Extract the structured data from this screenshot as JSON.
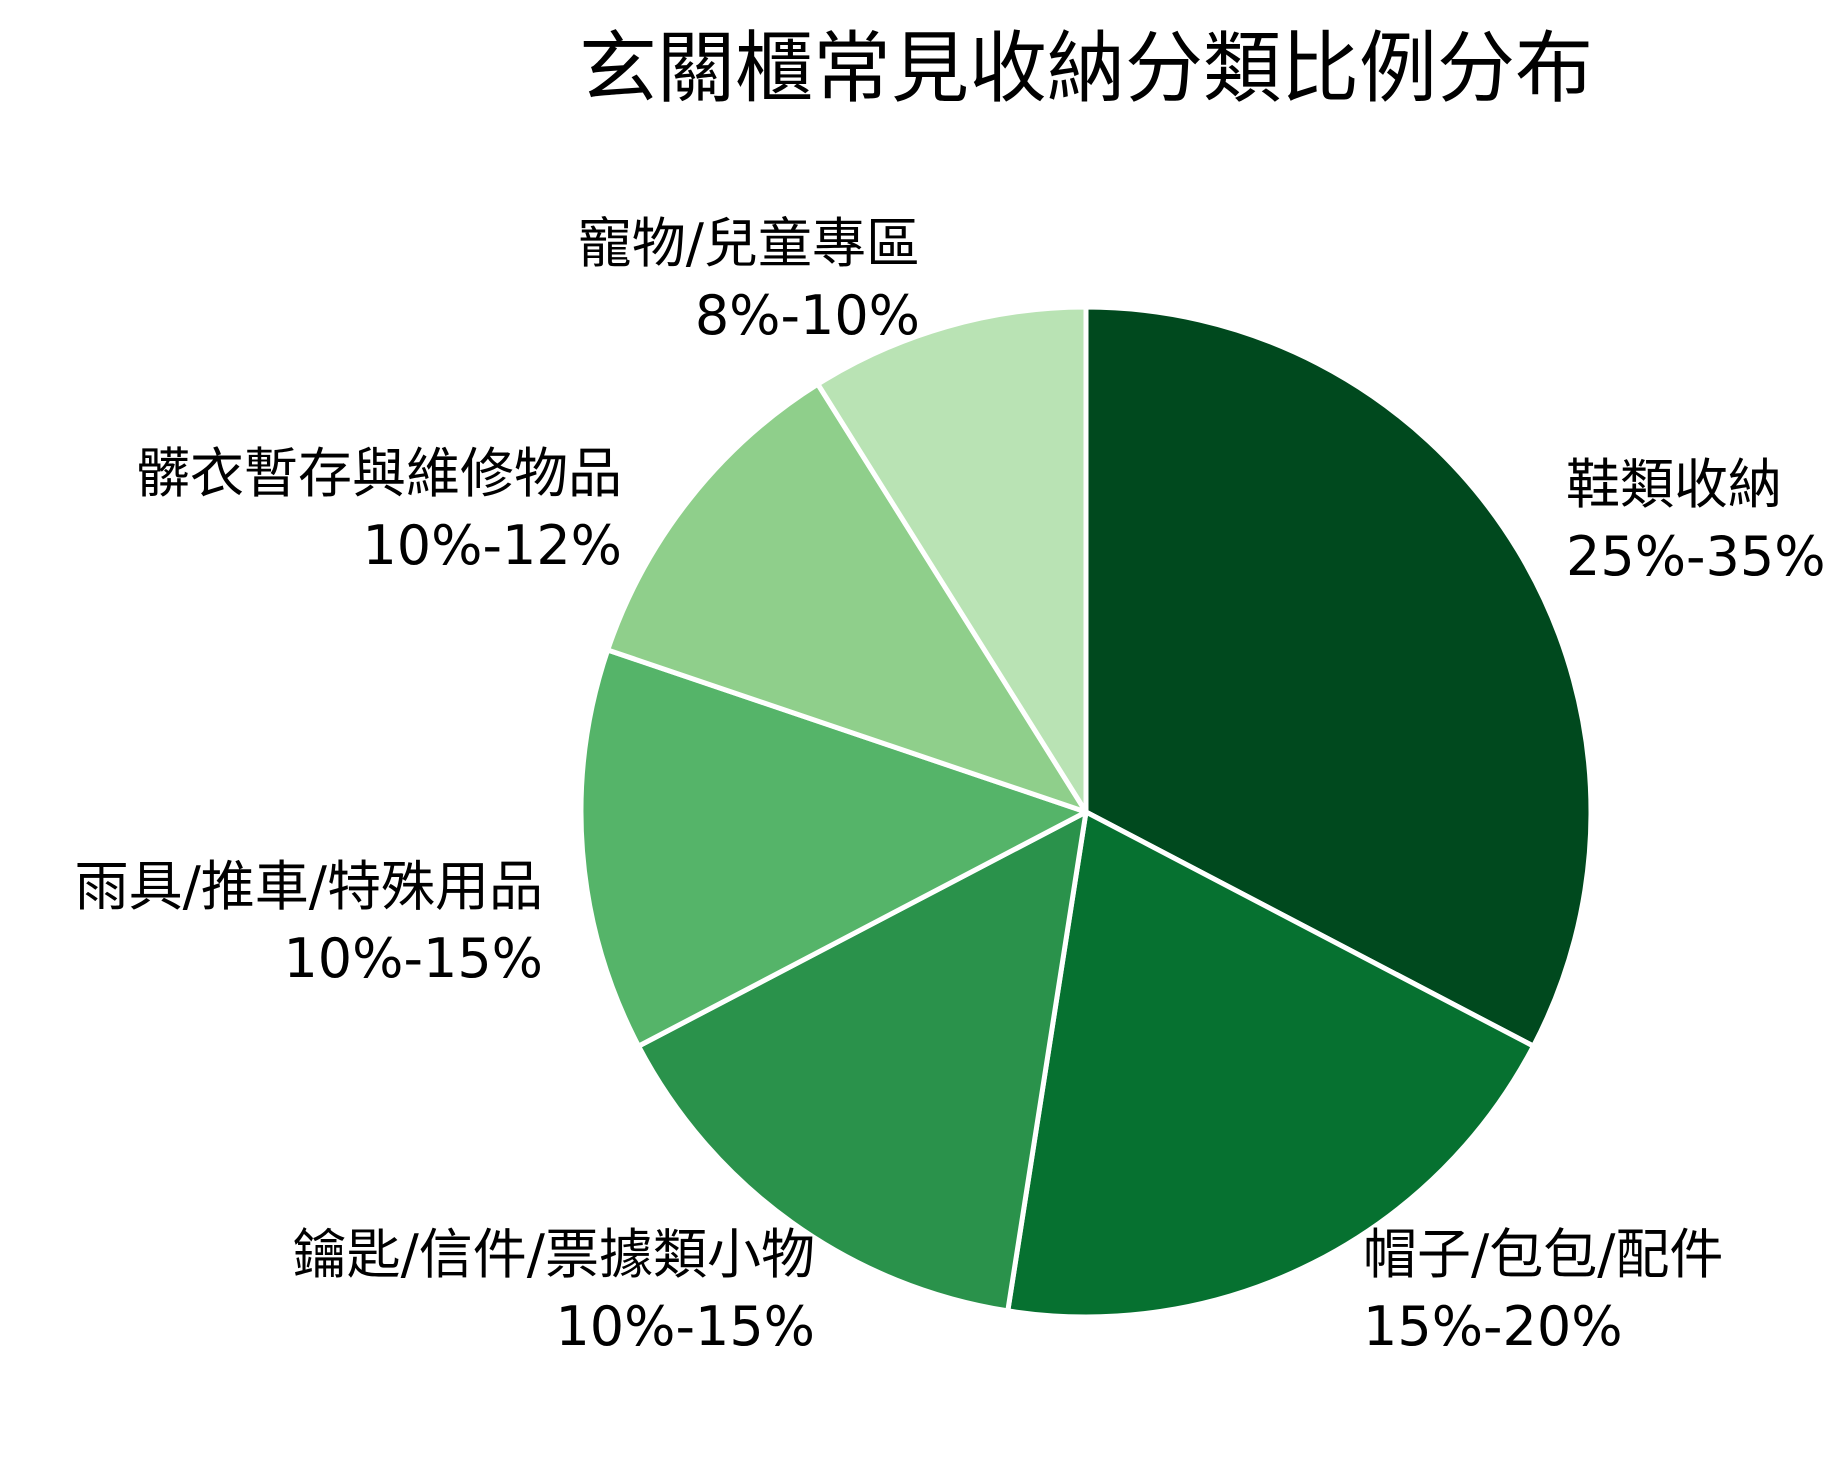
{
  "chart_data": {
    "type": "pie",
    "title": "玄關櫃常見收納分類比例分布",
    "slices": [
      {
        "label": "鞋類收納",
        "value_text": "25%-35%",
        "value": 33,
        "color": "#00491e"
      },
      {
        "label": "帽子/包包/配件",
        "value_text": "15%-20%",
        "value": 20,
        "color": "#067130"
      },
      {
        "label": "鑰匙/信件/票據類小物",
        "value_text": "10%-15%",
        "value": 15,
        "color": "#2a924b"
      },
      {
        "label": "雨具/推車/特殊用品",
        "value_text": "10%-15%",
        "value": 13,
        "color": "#55b469"
      },
      {
        "label": "髒衣暫存與維修物品",
        "value_text": "10%-12%",
        "value": 11,
        "color": "#8fcf8b"
      },
      {
        "label": "寵物/兒童專區",
        "value_text": "8%-10%",
        "value": 9,
        "color": "#b9e3b4"
      }
    ],
    "start_angle": "top",
    "direction": "clockwise",
    "legend": "none"
  }
}
